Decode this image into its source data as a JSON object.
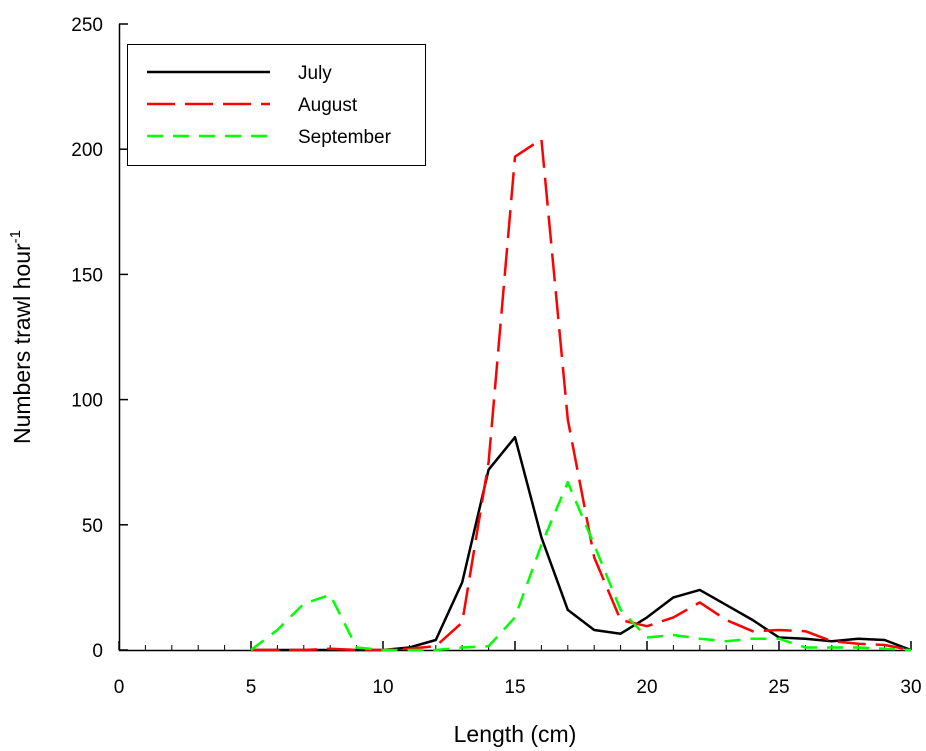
{
  "chart_data": {
    "type": "line",
    "xlabel": "Length (cm)",
    "ylabel": "Numbers trawl hour",
    "ylabel_superscript": "-1",
    "xlim": [
      0,
      30
    ],
    "ylim": [
      0,
      250
    ],
    "xticks": [
      0,
      5,
      10,
      15,
      20,
      25,
      30
    ],
    "yticks": [
      0,
      50,
      100,
      150,
      200,
      250
    ],
    "x_minor_step": 1,
    "grid": false,
    "legend_position": "top-left",
    "series": [
      {
        "name": "July",
        "color": "#000000",
        "dash": "solid",
        "x": [
          5,
          6,
          7,
          8,
          9,
          10,
          11,
          12,
          13,
          14,
          15,
          16,
          17,
          18,
          19,
          20,
          21,
          22,
          23,
          24,
          25,
          26,
          27,
          28,
          29,
          30
        ],
        "y": [
          0,
          0,
          0,
          0,
          0,
          0,
          1,
          4,
          27,
          72,
          85,
          45,
          16,
          8,
          6.5,
          13,
          21,
          24,
          18,
          12,
          5,
          4.5,
          3.5,
          4.5,
          4,
          0
        ]
      },
      {
        "name": "August",
        "color": "#ff0000",
        "dash": "long",
        "x": [
          5,
          6,
          7,
          8,
          9,
          10,
          11,
          12,
          13,
          14,
          15,
          16,
          17,
          18,
          19,
          20,
          21,
          22,
          23,
          24,
          25,
          26,
          27,
          28,
          29,
          30
        ],
        "y": [
          0,
          0,
          0,
          0.5,
          0,
          0,
          0.5,
          1.5,
          11,
          75,
          197,
          204,
          92,
          37,
          12,
          9.5,
          13,
          19,
          12,
          7.5,
          8,
          7.5,
          3.5,
          2.5,
          2,
          0
        ]
      },
      {
        "name": "September",
        "color": "#00ff00",
        "dash": "medium",
        "x": [
          5,
          6,
          7,
          8,
          9,
          10,
          11,
          12,
          13,
          14,
          15,
          16,
          17,
          18,
          19,
          20,
          21,
          22,
          23,
          24,
          25,
          26,
          27,
          28,
          29,
          30
        ],
        "y": [
          0,
          8,
          18.5,
          22,
          1,
          0,
          0,
          0,
          1,
          1.5,
          13,
          42,
          67,
          42,
          16,
          5,
          6,
          4.5,
          3.5,
          4.5,
          4.5,
          1,
          1,
          1,
          0.5,
          0
        ]
      }
    ]
  }
}
